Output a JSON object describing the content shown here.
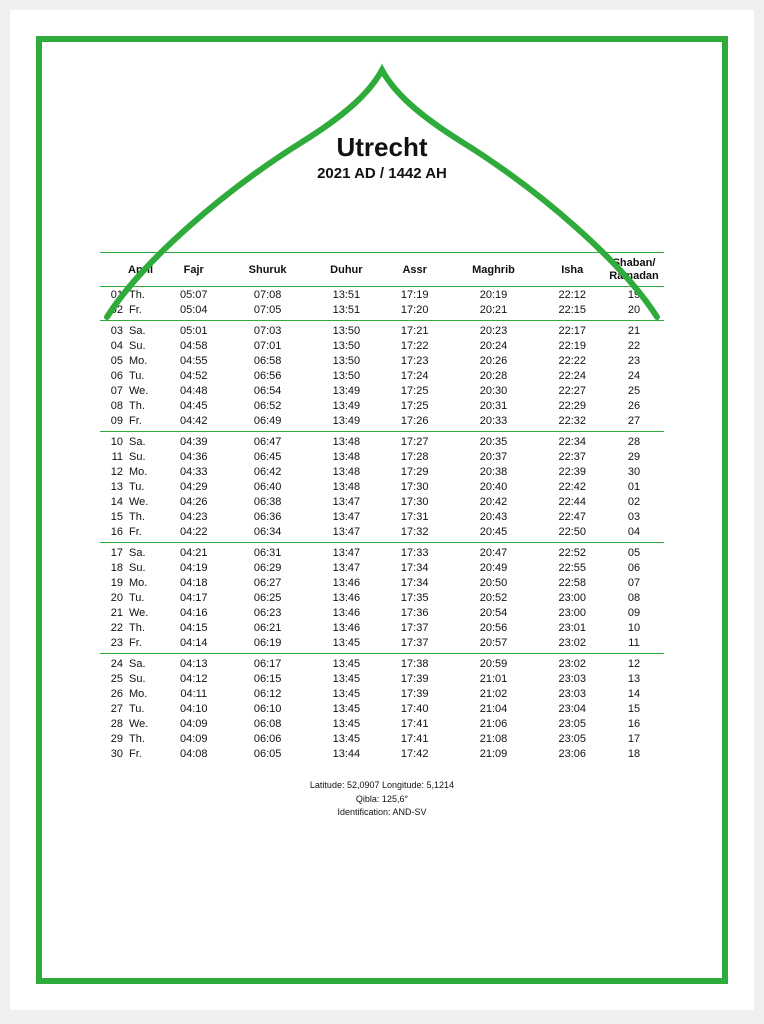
{
  "style": {
    "accent": "#2eab3a",
    "border_w": 6,
    "bg": "#eef0f1",
    "page_bg": "#ffffff",
    "text": "#111111",
    "font": "Arial",
    "title_size": 26,
    "subtitle_size": 15,
    "table_size": 11,
    "footer_size": 9
  },
  "header": {
    "city": "Utrecht",
    "year": "2021 AD / 1442 AH"
  },
  "columns": {
    "month": "April",
    "fajr": "Fajr",
    "shuruk": "Shuruk",
    "duhur": "Duhur",
    "assr": "Assr",
    "maghrib": "Maghrib",
    "isha": "Isha",
    "hijri": "Shaban/\nRamadan"
  },
  "weeks": [
    [
      {
        "d": "01",
        "wd": "Th.",
        "fajr": "05:07",
        "shuruk": "07:08",
        "duhur": "13:51",
        "assr": "17:19",
        "maghrib": "20:19",
        "isha": "22:12",
        "h": "19"
      },
      {
        "d": "02",
        "wd": "Fr.",
        "fajr": "05:04",
        "shuruk": "07:05",
        "duhur": "13:51",
        "assr": "17:20",
        "maghrib": "20:21",
        "isha": "22:15",
        "h": "20"
      }
    ],
    [
      {
        "d": "03",
        "wd": "Sa.",
        "fajr": "05:01",
        "shuruk": "07:03",
        "duhur": "13:50",
        "assr": "17:21",
        "maghrib": "20:23",
        "isha": "22:17",
        "h": "21"
      },
      {
        "d": "04",
        "wd": "Su.",
        "fajr": "04:58",
        "shuruk": "07:01",
        "duhur": "13:50",
        "assr": "17:22",
        "maghrib": "20:24",
        "isha": "22:19",
        "h": "22"
      },
      {
        "d": "05",
        "wd": "Mo.",
        "fajr": "04:55",
        "shuruk": "06:58",
        "duhur": "13:50",
        "assr": "17:23",
        "maghrib": "20:26",
        "isha": "22:22",
        "h": "23"
      },
      {
        "d": "06",
        "wd": "Tu.",
        "fajr": "04:52",
        "shuruk": "06:56",
        "duhur": "13:50",
        "assr": "17:24",
        "maghrib": "20:28",
        "isha": "22:24",
        "h": "24"
      },
      {
        "d": "07",
        "wd": "We.",
        "fajr": "04:48",
        "shuruk": "06:54",
        "duhur": "13:49",
        "assr": "17:25",
        "maghrib": "20:30",
        "isha": "22:27",
        "h": "25"
      },
      {
        "d": "08",
        "wd": "Th.",
        "fajr": "04:45",
        "shuruk": "06:52",
        "duhur": "13:49",
        "assr": "17:25",
        "maghrib": "20:31",
        "isha": "22:29",
        "h": "26"
      },
      {
        "d": "09",
        "wd": "Fr.",
        "fajr": "04:42",
        "shuruk": "06:49",
        "duhur": "13:49",
        "assr": "17:26",
        "maghrib": "20:33",
        "isha": "22:32",
        "h": "27"
      }
    ],
    [
      {
        "d": "10",
        "wd": "Sa.",
        "fajr": "04:39",
        "shuruk": "06:47",
        "duhur": "13:48",
        "assr": "17:27",
        "maghrib": "20:35",
        "isha": "22:34",
        "h": "28"
      },
      {
        "d": "11",
        "wd": "Su.",
        "fajr": "04:36",
        "shuruk": "06:45",
        "duhur": "13:48",
        "assr": "17:28",
        "maghrib": "20:37",
        "isha": "22:37",
        "h": "29"
      },
      {
        "d": "12",
        "wd": "Mo.",
        "fajr": "04:33",
        "shuruk": "06:42",
        "duhur": "13:48",
        "assr": "17:29",
        "maghrib": "20:38",
        "isha": "22:39",
        "h": "30"
      },
      {
        "d": "13",
        "wd": "Tu.",
        "fajr": "04:29",
        "shuruk": "06:40",
        "duhur": "13:48",
        "assr": "17:30",
        "maghrib": "20:40",
        "isha": "22:42",
        "h": "01"
      },
      {
        "d": "14",
        "wd": "We.",
        "fajr": "04:26",
        "shuruk": "06:38",
        "duhur": "13:47",
        "assr": "17:30",
        "maghrib": "20:42",
        "isha": "22:44",
        "h": "02"
      },
      {
        "d": "15",
        "wd": "Th.",
        "fajr": "04:23",
        "shuruk": "06:36",
        "duhur": "13:47",
        "assr": "17:31",
        "maghrib": "20:43",
        "isha": "22:47",
        "h": "03"
      },
      {
        "d": "16",
        "wd": "Fr.",
        "fajr": "04:22",
        "shuruk": "06:34",
        "duhur": "13:47",
        "assr": "17:32",
        "maghrib": "20:45",
        "isha": "22:50",
        "h": "04"
      }
    ],
    [
      {
        "d": "17",
        "wd": "Sa.",
        "fajr": "04:21",
        "shuruk": "06:31",
        "duhur": "13:47",
        "assr": "17:33",
        "maghrib": "20:47",
        "isha": "22:52",
        "h": "05"
      },
      {
        "d": "18",
        "wd": "Su.",
        "fajr": "04:19",
        "shuruk": "06:29",
        "duhur": "13:47",
        "assr": "17:34",
        "maghrib": "20:49",
        "isha": "22:55",
        "h": "06"
      },
      {
        "d": "19",
        "wd": "Mo.",
        "fajr": "04:18",
        "shuruk": "06:27",
        "duhur": "13:46",
        "assr": "17:34",
        "maghrib": "20:50",
        "isha": "22:58",
        "h": "07"
      },
      {
        "d": "20",
        "wd": "Tu.",
        "fajr": "04:17",
        "shuruk": "06:25",
        "duhur": "13:46",
        "assr": "17:35",
        "maghrib": "20:52",
        "isha": "23:00",
        "h": "08"
      },
      {
        "d": "21",
        "wd": "We.",
        "fajr": "04:16",
        "shuruk": "06:23",
        "duhur": "13:46",
        "assr": "17:36",
        "maghrib": "20:54",
        "isha": "23:00",
        "h": "09"
      },
      {
        "d": "22",
        "wd": "Th.",
        "fajr": "04:15",
        "shuruk": "06:21",
        "duhur": "13:46",
        "assr": "17:37",
        "maghrib": "20:56",
        "isha": "23:01",
        "h": "10"
      },
      {
        "d": "23",
        "wd": "Fr.",
        "fajr": "04:14",
        "shuruk": "06:19",
        "duhur": "13:45",
        "assr": "17:37",
        "maghrib": "20:57",
        "isha": "23:02",
        "h": "11"
      }
    ],
    [
      {
        "d": "24",
        "wd": "Sa.",
        "fajr": "04:13",
        "shuruk": "06:17",
        "duhur": "13:45",
        "assr": "17:38",
        "maghrib": "20:59",
        "isha": "23:02",
        "h": "12"
      },
      {
        "d": "25",
        "wd": "Su.",
        "fajr": "04:12",
        "shuruk": "06:15",
        "duhur": "13:45",
        "assr": "17:39",
        "maghrib": "21:01",
        "isha": "23:03",
        "h": "13"
      },
      {
        "d": "26",
        "wd": "Mo.",
        "fajr": "04:11",
        "shuruk": "06:12",
        "duhur": "13:45",
        "assr": "17:39",
        "maghrib": "21:02",
        "isha": "23:03",
        "h": "14"
      },
      {
        "d": "27",
        "wd": "Tu.",
        "fajr": "04:10",
        "shuruk": "06:10",
        "duhur": "13:45",
        "assr": "17:40",
        "maghrib": "21:04",
        "isha": "23:04",
        "h": "15"
      },
      {
        "d": "28",
        "wd": "We.",
        "fajr": "04:09",
        "shuruk": "06:08",
        "duhur": "13:45",
        "assr": "17:41",
        "maghrib": "21:06",
        "isha": "23:05",
        "h": "16"
      },
      {
        "d": "29",
        "wd": "Th.",
        "fajr": "04:09",
        "shuruk": "06:06",
        "duhur": "13:45",
        "assr": "17:41",
        "maghrib": "21:08",
        "isha": "23:05",
        "h": "17"
      },
      {
        "d": "30",
        "wd": "Fr.",
        "fajr": "04:08",
        "shuruk": "06:05",
        "duhur": "13:44",
        "assr": "17:42",
        "maghrib": "21:09",
        "isha": "23:06",
        "h": "18"
      }
    ]
  ],
  "footer": {
    "line1": "Latitude: 52,0907 Longitude: 5,1214",
    "line2": "Qibla: 125,6°",
    "line3": "Identification: AND-SV"
  }
}
